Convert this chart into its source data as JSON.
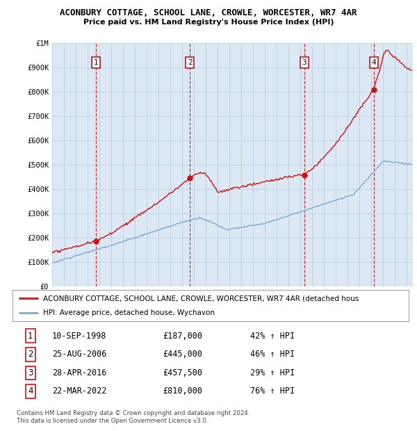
{
  "title1": "ACONBURY COTTAGE, SCHOOL LANE, CROWLE, WORCESTER, WR7 4AR",
  "title2": "Price paid vs. HM Land Registry's House Price Index (HPI)",
  "ylim": [
    0,
    1000000
  ],
  "yticks": [
    0,
    100000,
    200000,
    300000,
    400000,
    500000,
    600000,
    700000,
    800000,
    900000,
    1000000
  ],
  "ytick_labels": [
    "£0",
    "£100K",
    "£200K",
    "£300K",
    "£400K",
    "£500K",
    "£600K",
    "£700K",
    "£800K",
    "£900K",
    "£1M"
  ],
  "xlim_start": 1995.0,
  "xlim_end": 2025.5,
  "sale_dates": [
    1998.69,
    2006.65,
    2016.32,
    2022.22
  ],
  "sale_prices": [
    187000,
    445000,
    457500,
    810000
  ],
  "sale_labels": [
    "1",
    "2",
    "3",
    "4"
  ],
  "legend_entries": [
    "ACONBURY COTTAGE, SCHOOL LANE, CROWLE, WORCESTER, WR7 4AR (detached hous",
    "HPI: Average price, detached house, Wychavon"
  ],
  "table_rows": [
    [
      "1",
      "10-SEP-1998",
      "£187,000",
      "42% ↑ HPI"
    ],
    [
      "2",
      "25-AUG-2006",
      "£445,000",
      "46% ↑ HPI"
    ],
    [
      "3",
      "28-APR-2016",
      "£457,500",
      "29% ↑ HPI"
    ],
    [
      "4",
      "22-MAR-2022",
      "£810,000",
      "76% ↑ HPI"
    ]
  ],
  "footer": "Contains HM Land Registry data © Crown copyright and database right 2024.\nThis data is licensed under the Open Government Licence v3.0.",
  "hpi_color": "#7aaad0",
  "price_color": "#cc1111",
  "dashed_color": "#cc1111",
  "bg_color": "#dce9f5",
  "grid_color": "#b8cfe0"
}
